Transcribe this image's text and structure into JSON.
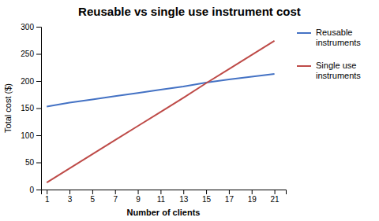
{
  "chart_data": {
    "type": "line",
    "title": "Reusable vs single use instrument cost",
    "xlabel": "Number of clients",
    "ylabel": "Total cost ($)",
    "x": [
      1,
      3,
      5,
      7,
      9,
      11,
      13,
      15,
      17,
      19,
      21
    ],
    "series": [
      {
        "name": "Reusable\ninstruments",
        "color": "#4472C4",
        "values": [
          153,
          160,
          166,
          172,
          178,
          184,
          190,
          197,
          203,
          208,
          213
        ]
      },
      {
        "name": "Single use\ninstruments",
        "color": "#BE4B48",
        "values": [
          13,
          39,
          65,
          91,
          117,
          143,
          169,
          196,
          222,
          248,
          274
        ]
      }
    ],
    "xlim": [
      0.5,
      22
    ],
    "xticks": [
      1,
      3,
      5,
      7,
      9,
      11,
      13,
      15,
      17,
      19,
      21
    ],
    "ylim": [
      0,
      300
    ],
    "yticks": [
      0,
      50,
      100,
      150,
      200,
      250,
      300
    ],
    "grid": false,
    "legend": "right"
  }
}
